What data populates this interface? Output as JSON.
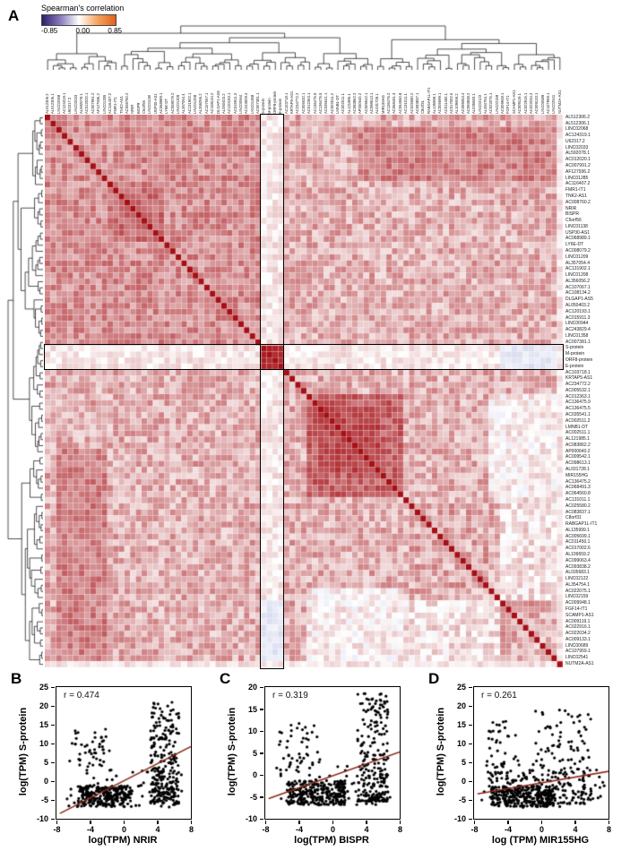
{
  "chart_data": [
    {
      "type": "heatmap",
      "panel": "A",
      "colorbar": {
        "title": "Spearman's correlation",
        "ticks": [
          "-0.85",
          "0.00",
          "0.85"
        ],
        "gradient": [
          "#2d1e6b",
          "#8a7bbd",
          "#ffffff",
          "#f3a55f",
          "#e3611c"
        ]
      },
      "value_range": [
        -0.85,
        0.85
      ],
      "legend_position": "top-left",
      "labels": [
        "AL512306.2",
        "AL512306.1",
        "LINC02068",
        "AC124319.1",
        "U62317.2",
        "LINC02033",
        "AL592078.1",
        "AC012020.1",
        "AC007991.2",
        "AF127936.2",
        "LINC01285",
        "AC116407.2",
        "FMR1-IT1",
        "TNK2-AS1",
        "AC008760.2",
        "NRIR",
        "BISPR",
        "C5orf56",
        "LINC01138",
        "USP30-AS1",
        "AC068989.1",
        "LY6E-DT",
        "AC008079.2",
        "LINC01209",
        "AL357054.4",
        "AC131902.1",
        "LINC01208",
        "AL356056.2",
        "AC107067.1",
        "AC108134.2",
        "DLGAP1-AS5",
        "AL050403.2",
        "AC120193.1",
        "AC015911.3",
        "LINC00944",
        "AC243829.4",
        "LINC01358",
        "AC007381.1",
        "S-protein",
        "M-protein",
        "ORF8-protein",
        "E-protein",
        "AC103718.1",
        "KRTAP5-AS1",
        "AC234772.2",
        "AC005532.1",
        "AC012363.1",
        "AC136475.9",
        "AC136475.5",
        "AC035541.1",
        "AC002511.2",
        "LMNB1-DT",
        "AC002511.1",
        "AL121985.1",
        "AC083862.2",
        "AP000640.2",
        "AC009542.1",
        "AC098613.1",
        "AL031728.1",
        "MIR155HG",
        "AC136475.2",
        "AC068491.3",
        "AC064560.8",
        "AC131011.1",
        "AC025580.2",
        "AC083837.1",
        "C8orf31",
        "RABGAP1L-IT1",
        "AL135999.1",
        "AC005699.1",
        "AC011450.1",
        "AC017002.6",
        "AL109659.2",
        "AC099063.4",
        "AC093838.2",
        "AL035683.1",
        "LINC02122",
        "AL354754.1",
        "AC022075.1",
        "LINC02159",
        "AC009948.1",
        "FGF14-IT1",
        "SCAMP1-AS1",
        "AC009119.1",
        "AC022916.1",
        "AC022034.2",
        "AC009133.1",
        "LINC00689",
        "AC107959.1",
        "LINC02541",
        "NUTM2A-AS1"
      ],
      "highlight": {
        "labels": [
          "S-protein",
          "M-protein",
          "ORF8-protein",
          "E-protein"
        ],
        "start": 38,
        "count": 4
      },
      "render": {
        "seed": 7,
        "base": 0.32,
        "amp": 0.2,
        "diag": 0.95,
        "pos_color": [
          165,
          15,
          21
        ],
        "neg_color": [
          120,
          130,
          200
        ],
        "blocks": [
          {
            "r": [
              0,
              37
            ],
            "c": [
              0,
              37
            ],
            "v": 0.45,
            "a": 0.18
          },
          {
            "r": [
              11,
              20
            ],
            "c": [
              11,
              20
            ],
            "v": 0.58,
            "a": 0.15
          },
          {
            "r": [
              2,
              10
            ],
            "c": [
              55,
              90
            ],
            "v": 0.5,
            "a": 0.15
          },
          {
            "r": [
              63,
              90
            ],
            "c": [
              63,
              90
            ],
            "v": 0.33,
            "a": 0.22
          },
          {
            "r": [
              46,
              62
            ],
            "c": [
              46,
              62
            ],
            "v": 0.62,
            "a": 0.14
          },
          {
            "r": [
              48,
              58
            ],
            "c": [
              48,
              58
            ],
            "v": 0.74,
            "a": 0.1
          },
          {
            "r": [
              78,
              90
            ],
            "c": [
              46,
              62
            ],
            "v": 0.05,
            "a": 0.18
          },
          {
            "r": [
              80,
              90
            ],
            "c": [
              63,
              79
            ],
            "v": 0.12,
            "a": 0.2
          },
          {
            "r": [
              38,
              41
            ],
            "c": [
              0,
              90
            ],
            "v": 0.1,
            "a": 0.12
          },
          {
            "r": [
              38,
              41
            ],
            "c": [
              80,
              90
            ],
            "v": -0.18,
            "a": 0.1
          },
          {
            "r": [
              38,
              41
            ],
            "c": [
              38,
              41
            ],
            "v": 0.86,
            "a": 0.05
          },
          {
            "r": [
              90,
              90
            ],
            "c": [
              0,
              89
            ],
            "v": 0.12,
            "a": 0.1
          }
        ]
      }
    },
    {
      "type": "scatter",
      "panel": "B",
      "annotation": "r = 0.474",
      "xlabel": "log(TPM) NRIR",
      "ylabel": "log(TPM) S-protein",
      "xlim": [
        -8,
        8
      ],
      "ylim": [
        -10,
        25
      ],
      "xticks": [
        -8,
        -4,
        0,
        4,
        8
      ],
      "yticks": [
        -10,
        -5,
        0,
        5,
        10,
        15,
        20,
        25
      ],
      "trend": {
        "x1": -7.6,
        "y1": -8.6,
        "x2": 8,
        "y2": 9.2,
        "color": "#8b2a1a"
      },
      "render": {
        "seed": 21,
        "n": 620,
        "clusters": [
          {
            "w": 0.42,
            "x": [
              -5.5,
              6.5
            ],
            "y": [
              -6.8,
              5.5
            ],
            "p": 1
          },
          {
            "w": 0.38,
            "x": [
              3.2,
              3.4
            ],
            "y": [
              -6,
              27
            ],
            "p": 1.5
          },
          {
            "w": 0.13,
            "x": [
              -7,
              14
            ],
            "y": [
              -7,
              10
            ],
            "p": 1
          },
          {
            "w": 0.07,
            "x": [
              -6.5,
              5
            ],
            "y": [
              3,
              11
            ],
            "p": 1
          }
        ]
      }
    },
    {
      "type": "scatter",
      "panel": "C",
      "annotation": "r = 0.319",
      "xlabel": "log(TPM) BISPR",
      "ylabel": "log(TPM) S-protein",
      "xlim": [
        -8,
        8
      ],
      "ylim": [
        -10,
        20
      ],
      "xticks": [
        -8,
        -4,
        0,
        4,
        8
      ],
      "yticks": [
        -10,
        -5,
        0,
        5,
        10,
        15,
        20
      ],
      "trend": {
        "x1": -7.6,
        "y1": -5.4,
        "x2": 8,
        "y2": 5.2,
        "color": "#8b2a1a"
      },
      "render": {
        "seed": 33,
        "n": 620,
        "clusters": [
          {
            "w": 0.46,
            "x": [
              -5.5,
              7
            ],
            "y": [
              -6.8,
              5.5
            ],
            "p": 1
          },
          {
            "w": 0.36,
            "x": [
              3.0,
              3.6
            ],
            "y": [
              -6,
              25
            ],
            "p": 1.8
          },
          {
            "w": 0.12,
            "x": [
              -7,
              14
            ],
            "y": [
              -7,
              9
            ],
            "p": 1
          },
          {
            "w": 0.06,
            "x": [
              -6.5,
              5
            ],
            "y": [
              2,
              10
            ],
            "p": 1
          }
        ]
      }
    },
    {
      "type": "scatter",
      "panel": "D",
      "annotation": "r = 0.261",
      "xlabel": "log (TPM) MIR155HG",
      "ylabel": "log(TPM) S-protein",
      "xlim": [
        -8,
        8
      ],
      "ylim": [
        -10,
        25
      ],
      "xticks": [
        -8,
        -4,
        0,
        4,
        8
      ],
      "yticks": [
        -10,
        -5,
        0,
        5,
        10,
        15,
        20,
        25
      ],
      "trend": {
        "x1": -7.6,
        "y1": -3.4,
        "x2": 8,
        "y2": 2.6,
        "color": "#8b2a1a"
      },
      "render": {
        "seed": 45,
        "n": 620,
        "clusters": [
          {
            "w": 0.45,
            "x": [
              -6,
              7.5
            ],
            "y": [
              -6.8,
              5.5
            ],
            "p": 1
          },
          {
            "w": 0.3,
            "x": [
              -1,
              7
            ],
            "y": [
              -6,
              25
            ],
            "p": 1.8
          },
          {
            "w": 0.15,
            "x": [
              -7.5,
              15
            ],
            "y": [
              -7,
              10
            ],
            "p": 1
          },
          {
            "w": 0.1,
            "x": [
              -6.5,
              4
            ],
            "y": [
              0,
              16
            ],
            "p": 1.4
          }
        ]
      }
    }
  ]
}
